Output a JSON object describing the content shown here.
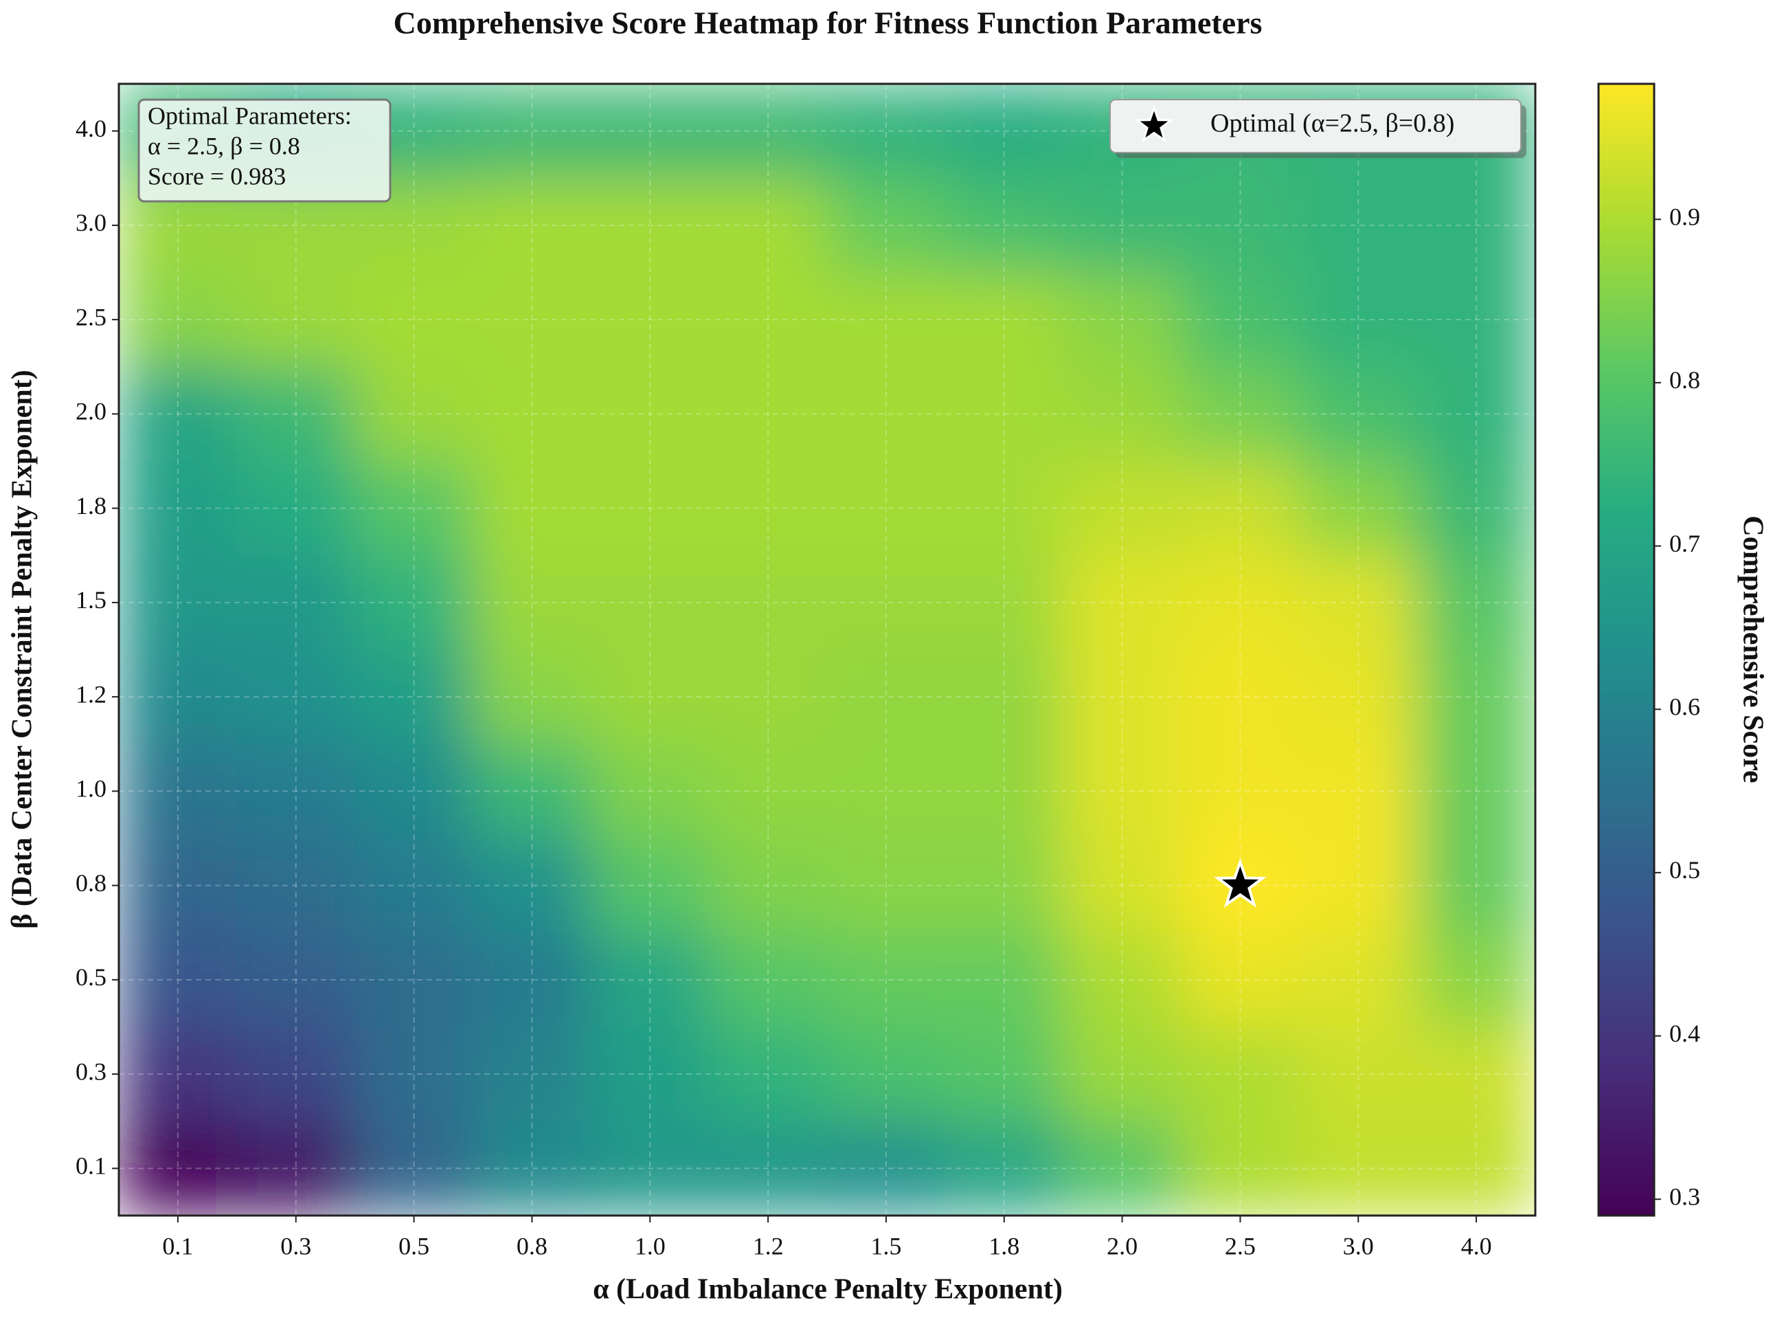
{
  "chart_data": {
    "type": "heatmap",
    "title": "Comprehensive Score Heatmap for Fitness Function Parameters",
    "x_label": "α (Load Imbalance Penalty Exponent)",
    "y_label": "β (Data Center Constraint Penalty Exponent)",
    "colorbar_label": "Comprehensive Score",
    "x_categories": [
      "0.1",
      "0.3",
      "0.5",
      "0.8",
      "1.0",
      "1.2",
      "1.5",
      "1.8",
      "2.0",
      "2.5",
      "3.0",
      "4.0"
    ],
    "y_categories": [
      "0.1",
      "0.3",
      "0.5",
      "0.8",
      "1.0",
      "1.2",
      "1.5",
      "1.8",
      "2.0",
      "2.5",
      "3.0",
      "4.0"
    ],
    "values": [
      [
        0.3,
        0.33,
        0.52,
        0.62,
        0.66,
        0.66,
        0.64,
        0.7,
        0.8,
        0.9,
        0.92,
        0.92
      ],
      [
        0.4,
        0.44,
        0.54,
        0.6,
        0.68,
        0.74,
        0.78,
        0.8,
        0.88,
        0.9,
        0.93,
        0.93
      ],
      [
        0.48,
        0.5,
        0.54,
        0.58,
        0.7,
        0.8,
        0.82,
        0.82,
        0.9,
        0.96,
        0.95,
        0.86
      ],
      [
        0.52,
        0.54,
        0.58,
        0.64,
        0.8,
        0.85,
        0.86,
        0.86,
        0.94,
        0.983,
        0.97,
        0.82
      ],
      [
        0.56,
        0.58,
        0.62,
        0.76,
        0.85,
        0.87,
        0.87,
        0.87,
        0.95,
        0.97,
        0.97,
        0.82
      ],
      [
        0.62,
        0.64,
        0.68,
        0.86,
        0.88,
        0.88,
        0.87,
        0.87,
        0.95,
        0.97,
        0.96,
        0.82
      ],
      [
        0.66,
        0.66,
        0.74,
        0.88,
        0.88,
        0.88,
        0.88,
        0.88,
        0.95,
        0.96,
        0.95,
        0.8
      ],
      [
        0.68,
        0.72,
        0.8,
        0.89,
        0.89,
        0.89,
        0.89,
        0.89,
        0.92,
        0.93,
        0.86,
        0.76
      ],
      [
        0.7,
        0.76,
        0.88,
        0.89,
        0.89,
        0.89,
        0.89,
        0.89,
        0.88,
        0.84,
        0.78,
        0.74
      ],
      [
        0.86,
        0.88,
        0.89,
        0.89,
        0.89,
        0.89,
        0.89,
        0.89,
        0.86,
        0.78,
        0.74,
        0.74
      ],
      [
        0.88,
        0.88,
        0.88,
        0.89,
        0.89,
        0.89,
        0.82,
        0.78,
        0.76,
        0.76,
        0.74,
        0.74
      ],
      [
        0.76,
        0.72,
        0.74,
        0.76,
        0.76,
        0.76,
        0.74,
        0.72,
        0.74,
        0.75,
        0.74,
        0.74
      ]
    ],
    "colormap": "viridis",
    "clim": [
      0.29,
      0.983
    ],
    "colorbar_ticks": [
      0.3,
      0.4,
      0.5,
      0.6,
      0.7,
      0.8,
      0.9
    ],
    "grid": true,
    "optimal": {
      "x": "2.5",
      "y": "0.8",
      "legend": "Optimal (α=2.5, β=0.8)"
    },
    "annotation": [
      "Optimal Parameters:",
      "α = 2.5, β = 0.8",
      "Score = 0.983"
    ]
  }
}
